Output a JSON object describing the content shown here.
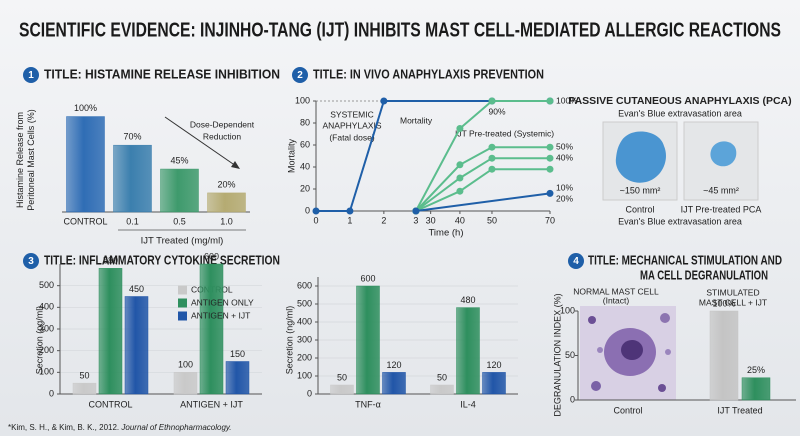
{
  "title": "SCIENTIFIC EVIDENCE: INJINHO-TANG (IJT) INHIBITS MAST CELL-MEDIATED ALLERGIC REACTIONS",
  "footnote": {
    "authors": "*Kim, S. H., & Kim, B. K., 2012.",
    "journal": "Journal of Ethnopharmacology."
  },
  "pca": {
    "title": "PASSIVE CUTANEOUS ANAPHYLAXIS (PCA)",
    "subtitle": "Evan's Blue extravasation area",
    "images": [
      {
        "label": "~150 mm²",
        "caption": "Control"
      },
      {
        "label": "~45 mm²",
        "caption": "IJT Pre-treated PCA"
      }
    ],
    "footer": "Evan's Blue extravasation area"
  },
  "chart_data": [
    {
      "type": "bar",
      "number": "1",
      "title": [
        "TITLE: HISTAMINE RELEASE INHIBITION"
      ],
      "ylabel": [
        "Histamine Release from",
        "Peritoneal Mast Cells (%)"
      ],
      "xlabel": "IJT Treated (mg/ml)",
      "annotations": [
        "Dose-Dependent",
        "Reduction"
      ],
      "categories": [
        "CONTROL",
        "0.1",
        "0.5",
        "1.0"
      ],
      "values": [
        100,
        70,
        45,
        20
      ],
      "value_labels": [
        "100%",
        "70%",
        "45%",
        "20%"
      ],
      "colors": [
        "#2f6db5",
        "#3b7fae",
        "#3e9a6c",
        "#b5ab72"
      ],
      "ylim": [
        0,
        110
      ]
    },
    {
      "type": "line",
      "number": "2",
      "title": [
        "TITLE: IN VIVO ANAPHYLAXIS PREVENTION"
      ],
      "ylabel": [
        "Mortality"
      ],
      "xlabel": "Time (h)",
      "annotations": [
        "SYSTEMIC",
        "ANAPHYLAXIS",
        "(Fatal dose)",
        "Mortality",
        "IJT Pre-treated (Systemic)",
        "90%",
        "100%",
        "50%",
        "40%",
        "10%",
        "20%"
      ],
      "xlim": [
        0,
        70
      ],
      "xticks": [
        0,
        1,
        2,
        3,
        30,
        40,
        50,
        70
      ],
      "ylim": [
        0,
        100
      ],
      "yticks": [
        0,
        20,
        40,
        60,
        80,
        100
      ],
      "series": [
        {
          "color": "#1f5fa8",
          "x": [
            0,
            1,
            2,
            50,
            70
          ],
          "values": [
            0,
            0,
            100,
            100,
            100
          ]
        },
        {
          "color": "#5bbd8d",
          "x": [
            3,
            40,
            50,
            70
          ],
          "values": [
            0,
            75,
            100,
            100
          ]
        },
        {
          "color": "#5bbd8d",
          "x": [
            3,
            40,
            50,
            70
          ],
          "values": [
            0,
            42,
            58,
            58
          ]
        },
        {
          "color": "#5bbd8d",
          "x": [
            3,
            40,
            50,
            70
          ],
          "values": [
            0,
            30,
            48,
            48
          ]
        },
        {
          "color": "#5bbd8d",
          "x": [
            3,
            40,
            50,
            70
          ],
          "values": [
            0,
            18,
            38,
            38
          ]
        },
        {
          "color": "#1f5fa8",
          "x": [
            3,
            70
          ],
          "values": [
            0,
            16
          ]
        }
      ]
    },
    {
      "type": "bar",
      "number": "3",
      "title": [
        "TITLE: INFLAMMATORY CYTOKINE SECRETION"
      ],
      "ylabel": [
        "Secretion (pg/ml)"
      ],
      "categories": [
        "CONTROL",
        "ANTIGEN + IJT"
      ],
      "series": [
        {
          "name": "CONTROL",
          "color": "#c9c9c9",
          "values": [
            50,
            100
          ]
        },
        {
          "name": "ANTIGEN ONLY",
          "color": "#2e8f5e",
          "values": [
            580,
            600
          ]
        },
        {
          "name": "ANTIGEN + IJT",
          "color": "#2156a8",
          "values": [
            450,
            150
          ]
        }
      ],
      "ylim": [
        0,
        600
      ],
      "yticks": [
        0,
        100,
        200,
        300,
        400,
        500
      ],
      "grid": true,
      "legend": "top-right"
    },
    {
      "type": "bar",
      "ylabel": [
        "Secretion (ng/ml)"
      ],
      "categories": [
        "TNF-α",
        "IL-4"
      ],
      "series": [
        {
          "color": "#c9c9c9",
          "values": [
            50,
            50
          ]
        },
        {
          "color": "#2e8f5e",
          "values": [
            600,
            480
          ]
        },
        {
          "color": "#2156a8",
          "values": [
            120,
            120
          ]
        }
      ],
      "ylim": [
        0,
        650
      ],
      "yticks": [
        0,
        100,
        200,
        300,
        400,
        500,
        600
      ],
      "grid": true
    },
    {
      "type": "bar",
      "number": "4",
      "title": [
        "TITLE: MECHANICAL STIMULATION AND",
        "MA CELL DEGRANULATION"
      ],
      "ylabel": [
        "DEGRANULATION INDEX (%)"
      ],
      "annotations": [
        "NORMAL MAST CELL",
        "(Intact)",
        "STIMULATED",
        "MAST CELL + IJT"
      ],
      "categories": [
        "Control",
        "IJT Treated"
      ],
      "series": [
        {
          "color": "#c4c4c4",
          "values": [
            null,
            100
          ],
          "value_labels": [
            null,
            "100%"
          ]
        },
        {
          "color": "#2e8f5e",
          "values": [
            null,
            25
          ],
          "value_labels": [
            null,
            "25%"
          ]
        }
      ],
      "ylim": [
        0,
        100
      ],
      "yticks": [
        0,
        50,
        100
      ]
    }
  ]
}
